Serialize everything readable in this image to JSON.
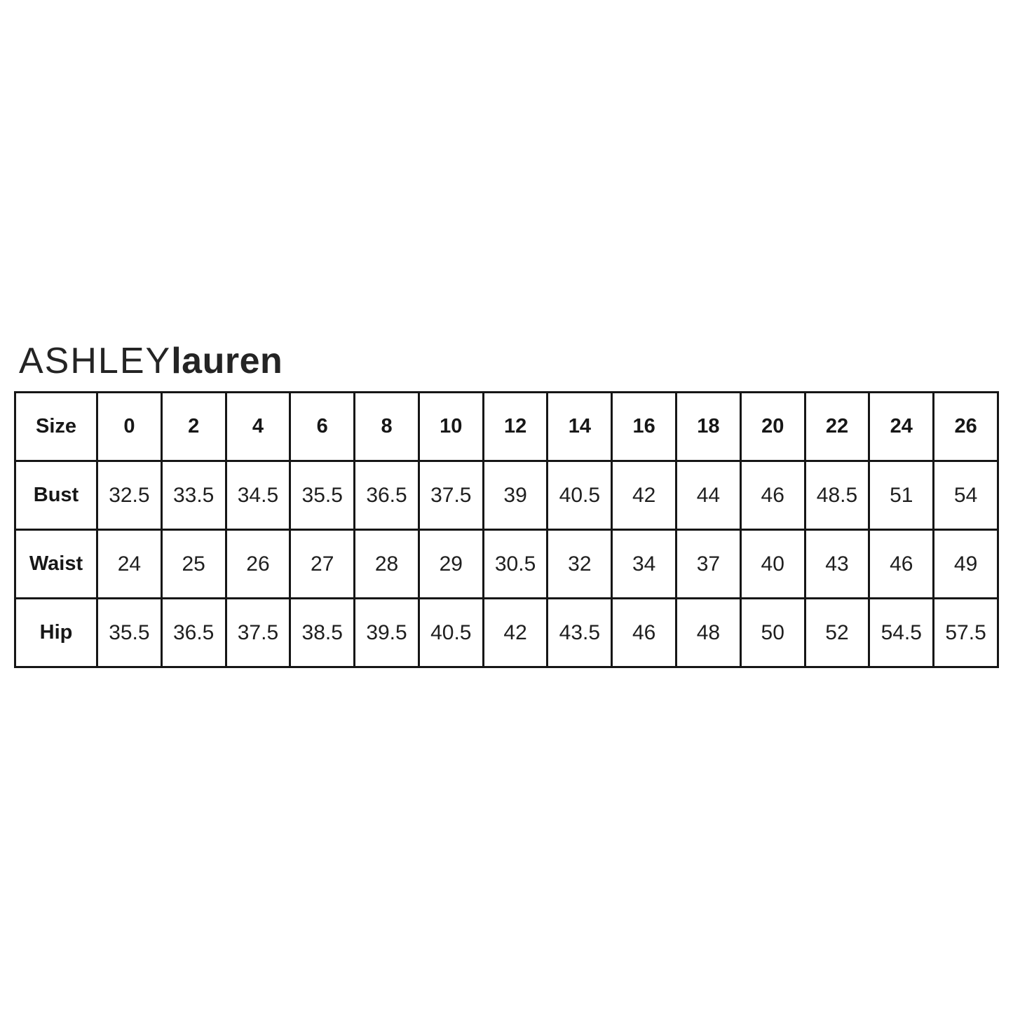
{
  "brand": {
    "logo_primary": "ASHLEY",
    "logo_secondary": "lauren"
  },
  "colors": {
    "background": "#ffffff",
    "border": "#161616",
    "text": "#1f1f1f"
  },
  "chart_data": {
    "type": "table",
    "title": "ASHLEYlauren size chart",
    "columns": [
      "Size",
      "0",
      "2",
      "4",
      "6",
      "8",
      "10",
      "12",
      "14",
      "16",
      "18",
      "20",
      "22",
      "24",
      "26"
    ],
    "rows": [
      {
        "label": "Bust",
        "values": [
          32.5,
          33.5,
          34.5,
          35.5,
          36.5,
          37.5,
          39,
          40.5,
          42,
          44,
          46,
          48.5,
          51,
          54
        ]
      },
      {
        "label": "Waist",
        "values": [
          24,
          25,
          26,
          27,
          28,
          29,
          30.5,
          32,
          34,
          37,
          40,
          43,
          46,
          49
        ]
      },
      {
        "label": "Hip",
        "values": [
          35.5,
          36.5,
          37.5,
          38.5,
          39.5,
          40.5,
          42,
          43.5,
          46,
          48,
          50,
          52,
          54.5,
          57.5
        ]
      }
    ]
  }
}
